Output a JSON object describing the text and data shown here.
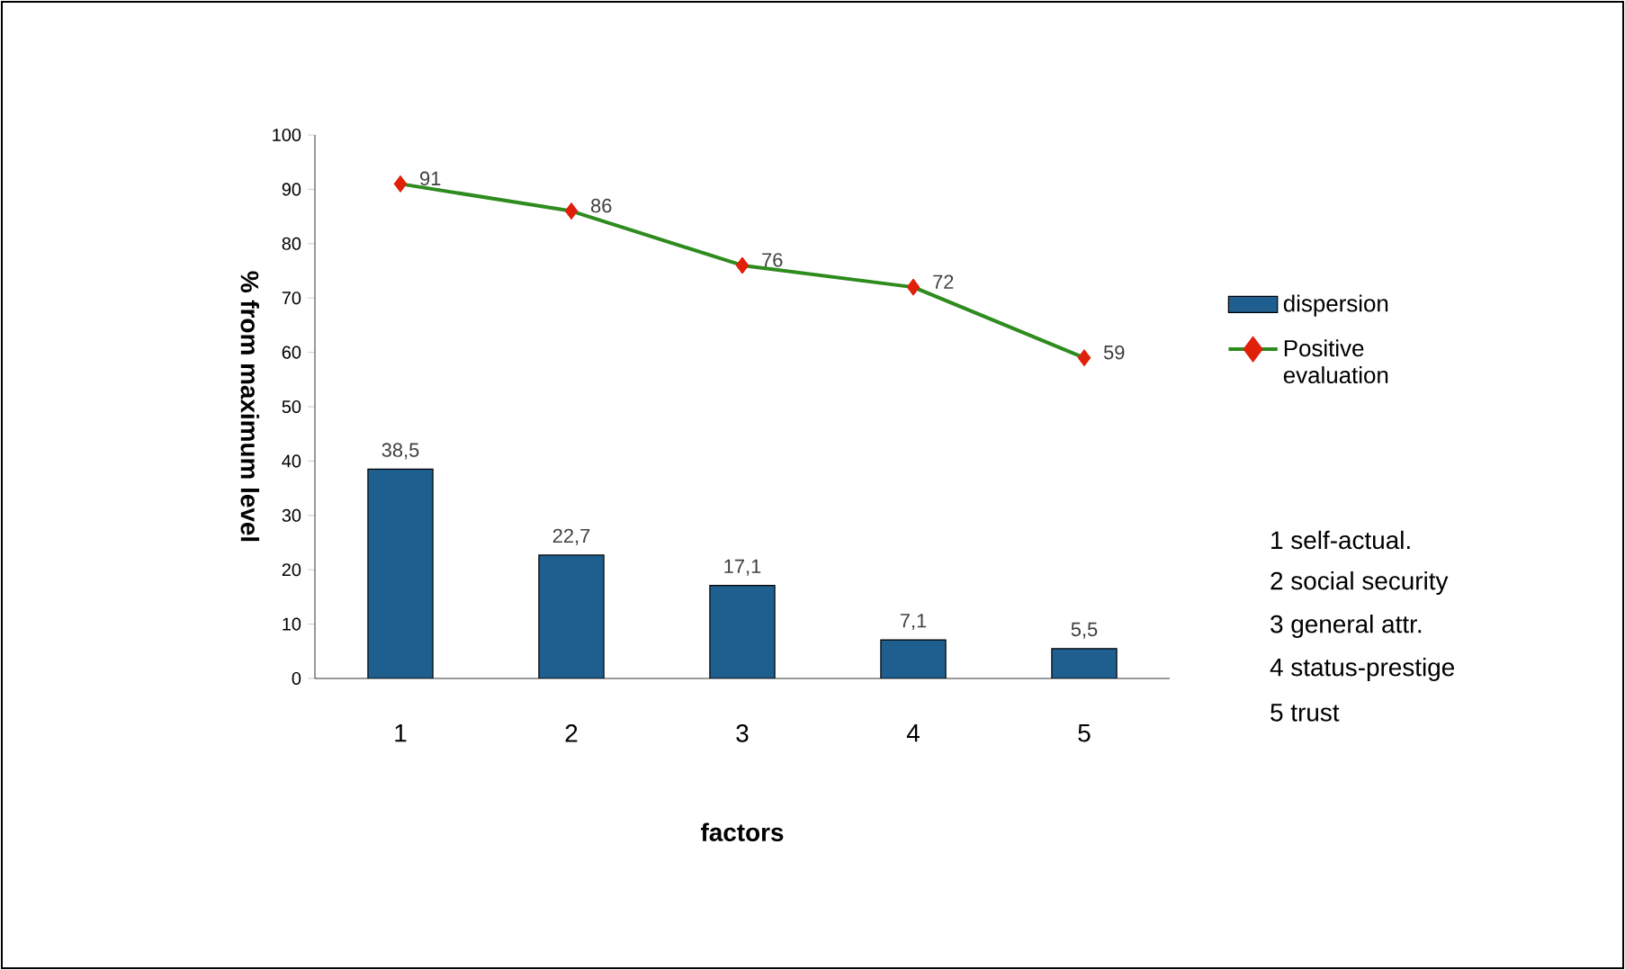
{
  "chart_data": {
    "type": "bar",
    "xlabel": "factors",
    "ylabel": "% from maximum level",
    "categories": [
      "1",
      "2",
      "3",
      "4",
      "5"
    ],
    "series": [
      {
        "name": "dispersion",
        "color": "#1f5f8f",
        "values": [
          38.5,
          22.7,
          17.1,
          7.1,
          5.5
        ],
        "value_labels": [
          "38,5",
          "22,7",
          "17,1",
          "7,1",
          "5,5"
        ]
      },
      {
        "name": "Positive evaluation",
        "type": "line",
        "color": "#2e8b1e",
        "colors": [
          "#e0200a",
          "#e0200a",
          "#e0200a",
          "#e0200a",
          "#e0200a"
        ],
        "marker": "diamond",
        "values": [
          91,
          86,
          76,
          72,
          59
        ],
        "value_labels": [
          "91",
          "86",
          "76",
          "72",
          "59"
        ]
      }
    ],
    "ylim": [
      0,
      100
    ],
    "yticks": [
      0,
      10,
      20,
      30,
      40,
      50,
      60,
      70,
      80,
      90,
      100
    ],
    "legend": "right",
    "grid": false,
    "annotations": [
      "1 self-actual.",
      "2 social security",
      "3 general attr.",
      "4 status-prestige",
      "5 trust"
    ]
  }
}
